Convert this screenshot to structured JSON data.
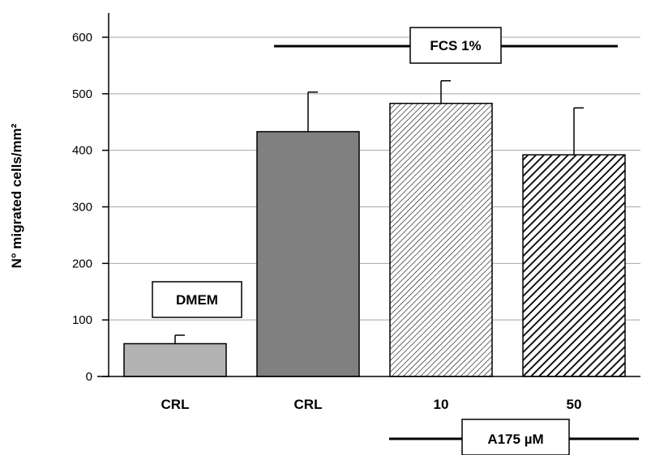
{
  "chart_data": {
    "type": "bar",
    "ylabel": "N° migrated cells/mm²",
    "ylim": [
      0,
      600
    ],
    "yticks": [
      0,
      100,
      200,
      300,
      400,
      500,
      600
    ],
    "grid": true,
    "categories": [
      "CRL",
      "CRL",
      "10",
      "50"
    ],
    "values": [
      58,
      433,
      483,
      392
    ],
    "errors": [
      15,
      70,
      40,
      83
    ],
    "bar_styles": [
      "solid-light-gray",
      "solid-dark-gray",
      "fine-hatch",
      "bold-hatch"
    ],
    "colors": {
      "light": "#b3b3b3",
      "dark": "#808080",
      "edge": "#000000",
      "grid": "#a6a6a6"
    },
    "annotations": {
      "dmem": "DMEM",
      "fcs": "FCS 1%",
      "treatment": "A175 µM"
    }
  }
}
